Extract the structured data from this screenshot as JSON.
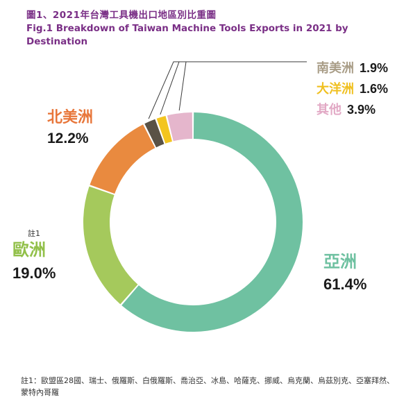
{
  "title_zh": "圖1、2021年台灣工具機出口地區別比重圖",
  "title_en": "Fig.1   Breakdown of Taiwan Machine Tools Exports in 2021 by Destination",
  "chart_data": {
    "type": "pie",
    "style": "donut",
    "start_angle_deg": 0,
    "direction": "clockwise",
    "unit": "%",
    "slices": [
      {
        "key": "asia",
        "label": "亞洲",
        "value": 61.4,
        "display": "61.4%",
        "color": "#6fc1a1",
        "label_color": "#6fc1a1",
        "note": ""
      },
      {
        "key": "europe",
        "label": "歐洲",
        "value": 19.0,
        "display": "19.0%",
        "color": "#a5c95c",
        "label_color": "#92c04a",
        "note": "註1"
      },
      {
        "key": "north_america",
        "label": "北美洲",
        "value": 12.2,
        "display": "12.2%",
        "color": "#e98a3f",
        "label_color": "#e8763a",
        "note": ""
      },
      {
        "key": "south_america",
        "label": "南美洲",
        "value": 1.9,
        "display": "1.9%",
        "color": "#5a5246",
        "label_color": "#a99d87",
        "note": ""
      },
      {
        "key": "oceania",
        "label": "大洋洲",
        "value": 1.6,
        "display": "1.6%",
        "color": "#f3c51f",
        "label_color": "#f0c020",
        "note": ""
      },
      {
        "key": "other",
        "label": "其他",
        "value": 3.9,
        "display": "3.9%",
        "color": "#e5b6cc",
        "label_color": "#e2a9c5",
        "note": ""
      }
    ]
  },
  "footnote": "註1：歐盟區28國、瑞士、俄羅斯、白俄羅斯、喬治亞、冰島、哈薩克、挪威、烏克蘭、烏茲別克、亞塞拜然、蒙特內哥羅"
}
